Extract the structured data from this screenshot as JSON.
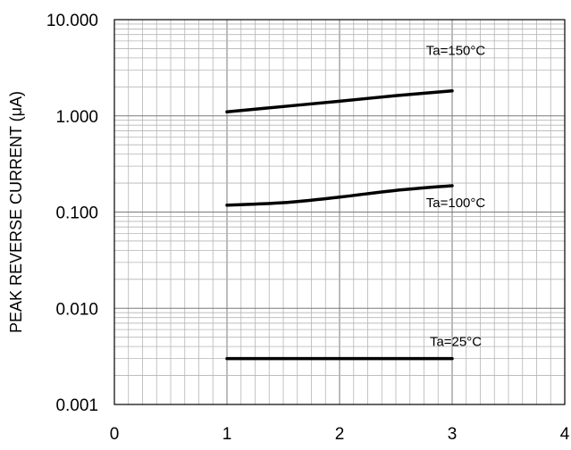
{
  "chart_data": {
    "type": "line",
    "title": "",
    "xlabel": "",
    "ylabel": "PEAK REVERSE CURRENT (μA)",
    "xlim": [
      0,
      4
    ],
    "ylim": [
      0.001,
      10
    ],
    "yscale": "log",
    "grid": true,
    "x_ticks": [
      "0",
      "1",
      "2",
      "3",
      "4"
    ],
    "y_ticks": [
      "10.000",
      "1.000",
      "0.100",
      "0.010",
      "0.001"
    ],
    "series": [
      {
        "name": "Ta=150°C",
        "x": [
          1,
          1.5,
          2,
          2.5,
          3
        ],
        "y": [
          1.1,
          1.25,
          1.42,
          1.62,
          1.82
        ]
      },
      {
        "name": "Ta=100°C",
        "x": [
          1,
          1.5,
          2,
          2.5,
          3
        ],
        "y": [
          0.118,
          0.125,
          0.143,
          0.168,
          0.188
        ]
      },
      {
        "name": "Ta=25°C",
        "x": [
          1,
          2,
          3
        ],
        "y": [
          0.003,
          0.003,
          0.003
        ]
      }
    ],
    "colors": {
      "line": "#000000",
      "grid": "#b5b5b5",
      "axis": "#000000"
    }
  }
}
